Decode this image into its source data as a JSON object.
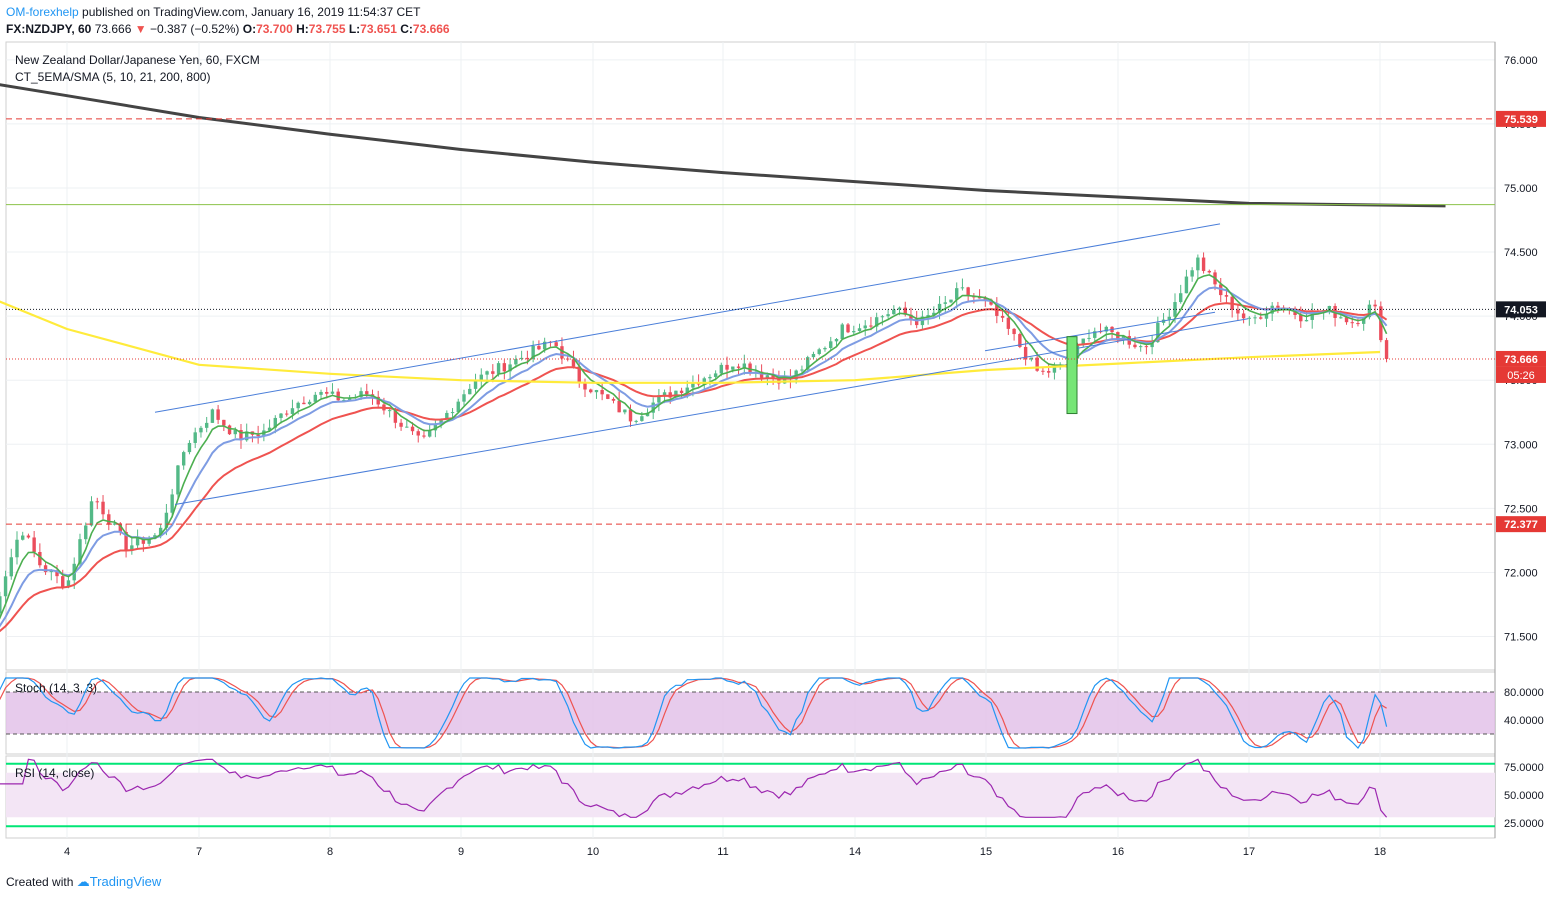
{
  "header": {
    "author": "OM-forexhelp",
    "published_text": "published on TradingView.com, January 16, 2019 11:54:37 CET",
    "symbol": "FX:NZDJPY, 60",
    "last": "73.666",
    "change_arrow": "▼",
    "change": "−0.387 (−0.52%)",
    "o_label": "O:",
    "o": "73.700",
    "h_label": "H:",
    "h": "73.755",
    "l_label": "L:",
    "l": "73.651",
    "c_label": "C:",
    "c": "73.666"
  },
  "legend": {
    "title": "New Zealand Dollar/Japanese Yen, 60, FXCM",
    "indicator": "CT_5EMA/SMA (5, 10, 21, 200, 800)",
    "stoch": "Stoch (14, 3, 3)",
    "rsi": "RSI (14, close)"
  },
  "footer": {
    "created_with": "Created with",
    "brand": "TradingView"
  },
  "colors": {
    "up": "#53b987",
    "down": "#eb4d5c",
    "ema5": "#4caf50",
    "ema10": "#7e9ce3",
    "ema21": "#ef5350",
    "sma200": "#ffeb3b",
    "sma800": "#444444",
    "channel": "#4a7ed9",
    "stoch_k": "#2196f3",
    "stoch_d": "#ef5350",
    "rsi": "#9c27b0",
    "stoch_bg": "#e1bee7",
    "rsi_bg": "#f3e5f5"
  },
  "chart_data": {
    "type": "candlestick",
    "price_axis": {
      "ticks": [
        "76.000",
        "75.500",
        "75.000",
        "74.500",
        "74.000",
        "73.500",
        "73.000",
        "72.500",
        "72.000",
        "71.500"
      ],
      "range": [
        71.2,
        76.1
      ]
    },
    "x_ticks": [
      {
        "label": "4",
        "day": 4
      },
      {
        "label": "7",
        "day": 7
      },
      {
        "label": "8",
        "day": 8
      },
      {
        "label": "9",
        "day": 9
      },
      {
        "label": "10",
        "day": 10
      },
      {
        "label": "11",
        "day": 11
      },
      {
        "label": "14",
        "day": 14
      },
      {
        "label": "15",
        "day": 15
      },
      {
        "label": "16",
        "day": 16
      },
      {
        "label": "17",
        "day": 17
      },
      {
        "label": "18",
        "day": 18
      }
    ],
    "levels": [
      {
        "price": 75.539,
        "label": "75.539",
        "style": "dashed",
        "color": "#e53935"
      },
      {
        "price": 74.87,
        "label": "",
        "style": "solid",
        "color": "#8bc34a"
      },
      {
        "price": 74.053,
        "label": "74.053",
        "style": "dotted",
        "color": "#131722"
      },
      {
        "price": 73.666,
        "label": "73.666",
        "style": "dotted",
        "color": "#e53935"
      },
      {
        "price": 72.377,
        "label": "72.377",
        "style": "dashed",
        "color": "#e53935"
      }
    ],
    "countdown": "05:26",
    "close_pivots": [
      [
        3.4,
        71.5
      ],
      [
        3.5,
        71.9
      ],
      [
        3.65,
        72.35
      ],
      [
        3.8,
        72.05
      ],
      [
        4.0,
        71.9
      ],
      [
        4.2,
        72.6
      ],
      [
        4.45,
        72.2
      ],
      [
        4.7,
        72.3
      ],
      [
        4.9,
        73.0
      ],
      [
        5.1,
        73.25
      ],
      [
        5.3,
        73.05
      ],
      [
        5.5,
        73.1
      ],
      [
        5.7,
        73.3
      ],
      [
        5.9,
        73.4
      ],
      [
        6.1,
        73.35
      ],
      [
        6.3,
        73.4
      ],
      [
        6.5,
        73.2
      ],
      [
        6.7,
        73.0
      ],
      [
        6.9,
        73.25
      ],
      [
        7.1,
        73.5
      ],
      [
        7.3,
        73.6
      ],
      [
        7.5,
        73.7
      ],
      [
        7.7,
        73.8
      ],
      [
        7.9,
        73.5
      ],
      [
        8.1,
        73.35
      ],
      [
        8.3,
        73.2
      ],
      [
        8.5,
        73.35
      ],
      [
        8.7,
        73.45
      ],
      [
        8.9,
        73.55
      ],
      [
        9.1,
        73.65
      ],
      [
        9.3,
        73.55
      ],
      [
        9.5,
        73.5
      ],
      [
        9.7,
        73.7
      ],
      [
        9.9,
        73.9
      ],
      [
        10.1,
        73.95
      ],
      [
        10.3,
        74.05
      ],
      [
        10.5,
        73.95
      ],
      [
        10.7,
        74.1
      ],
      [
        10.8,
        74.2
      ],
      [
        11.0,
        74.1
      ],
      [
        11.2,
        73.85
      ],
      [
        11.4,
        73.55
      ],
      [
        11.6,
        73.6
      ],
      [
        11.8,
        73.9
      ],
      [
        12.0,
        73.85
      ],
      [
        12.2,
        73.75
      ],
      [
        12.4,
        74.05
      ],
      [
        12.6,
        74.45
      ],
      [
        12.8,
        74.15
      ],
      [
        13.0,
        73.95
      ],
      [
        13.2,
        74.1
      ],
      [
        13.4,
        74.0
      ],
      [
        13.6,
        74.05
      ],
      [
        13.8,
        73.95
      ],
      [
        13.95,
        74.1
      ],
      [
        14.05,
        73.666
      ]
    ],
    "stoch": {
      "range": [
        0,
        100
      ],
      "ticks": [
        "80.0000",
        "40.0000"
      ],
      "upper": 80,
      "lower": 20
    },
    "rsi": {
      "range": [
        15,
        85
      ],
      "ticks": [
        "75.0000",
        "50.0000",
        "25.0000"
      ],
      "upper": 70,
      "lower": 30
    }
  }
}
